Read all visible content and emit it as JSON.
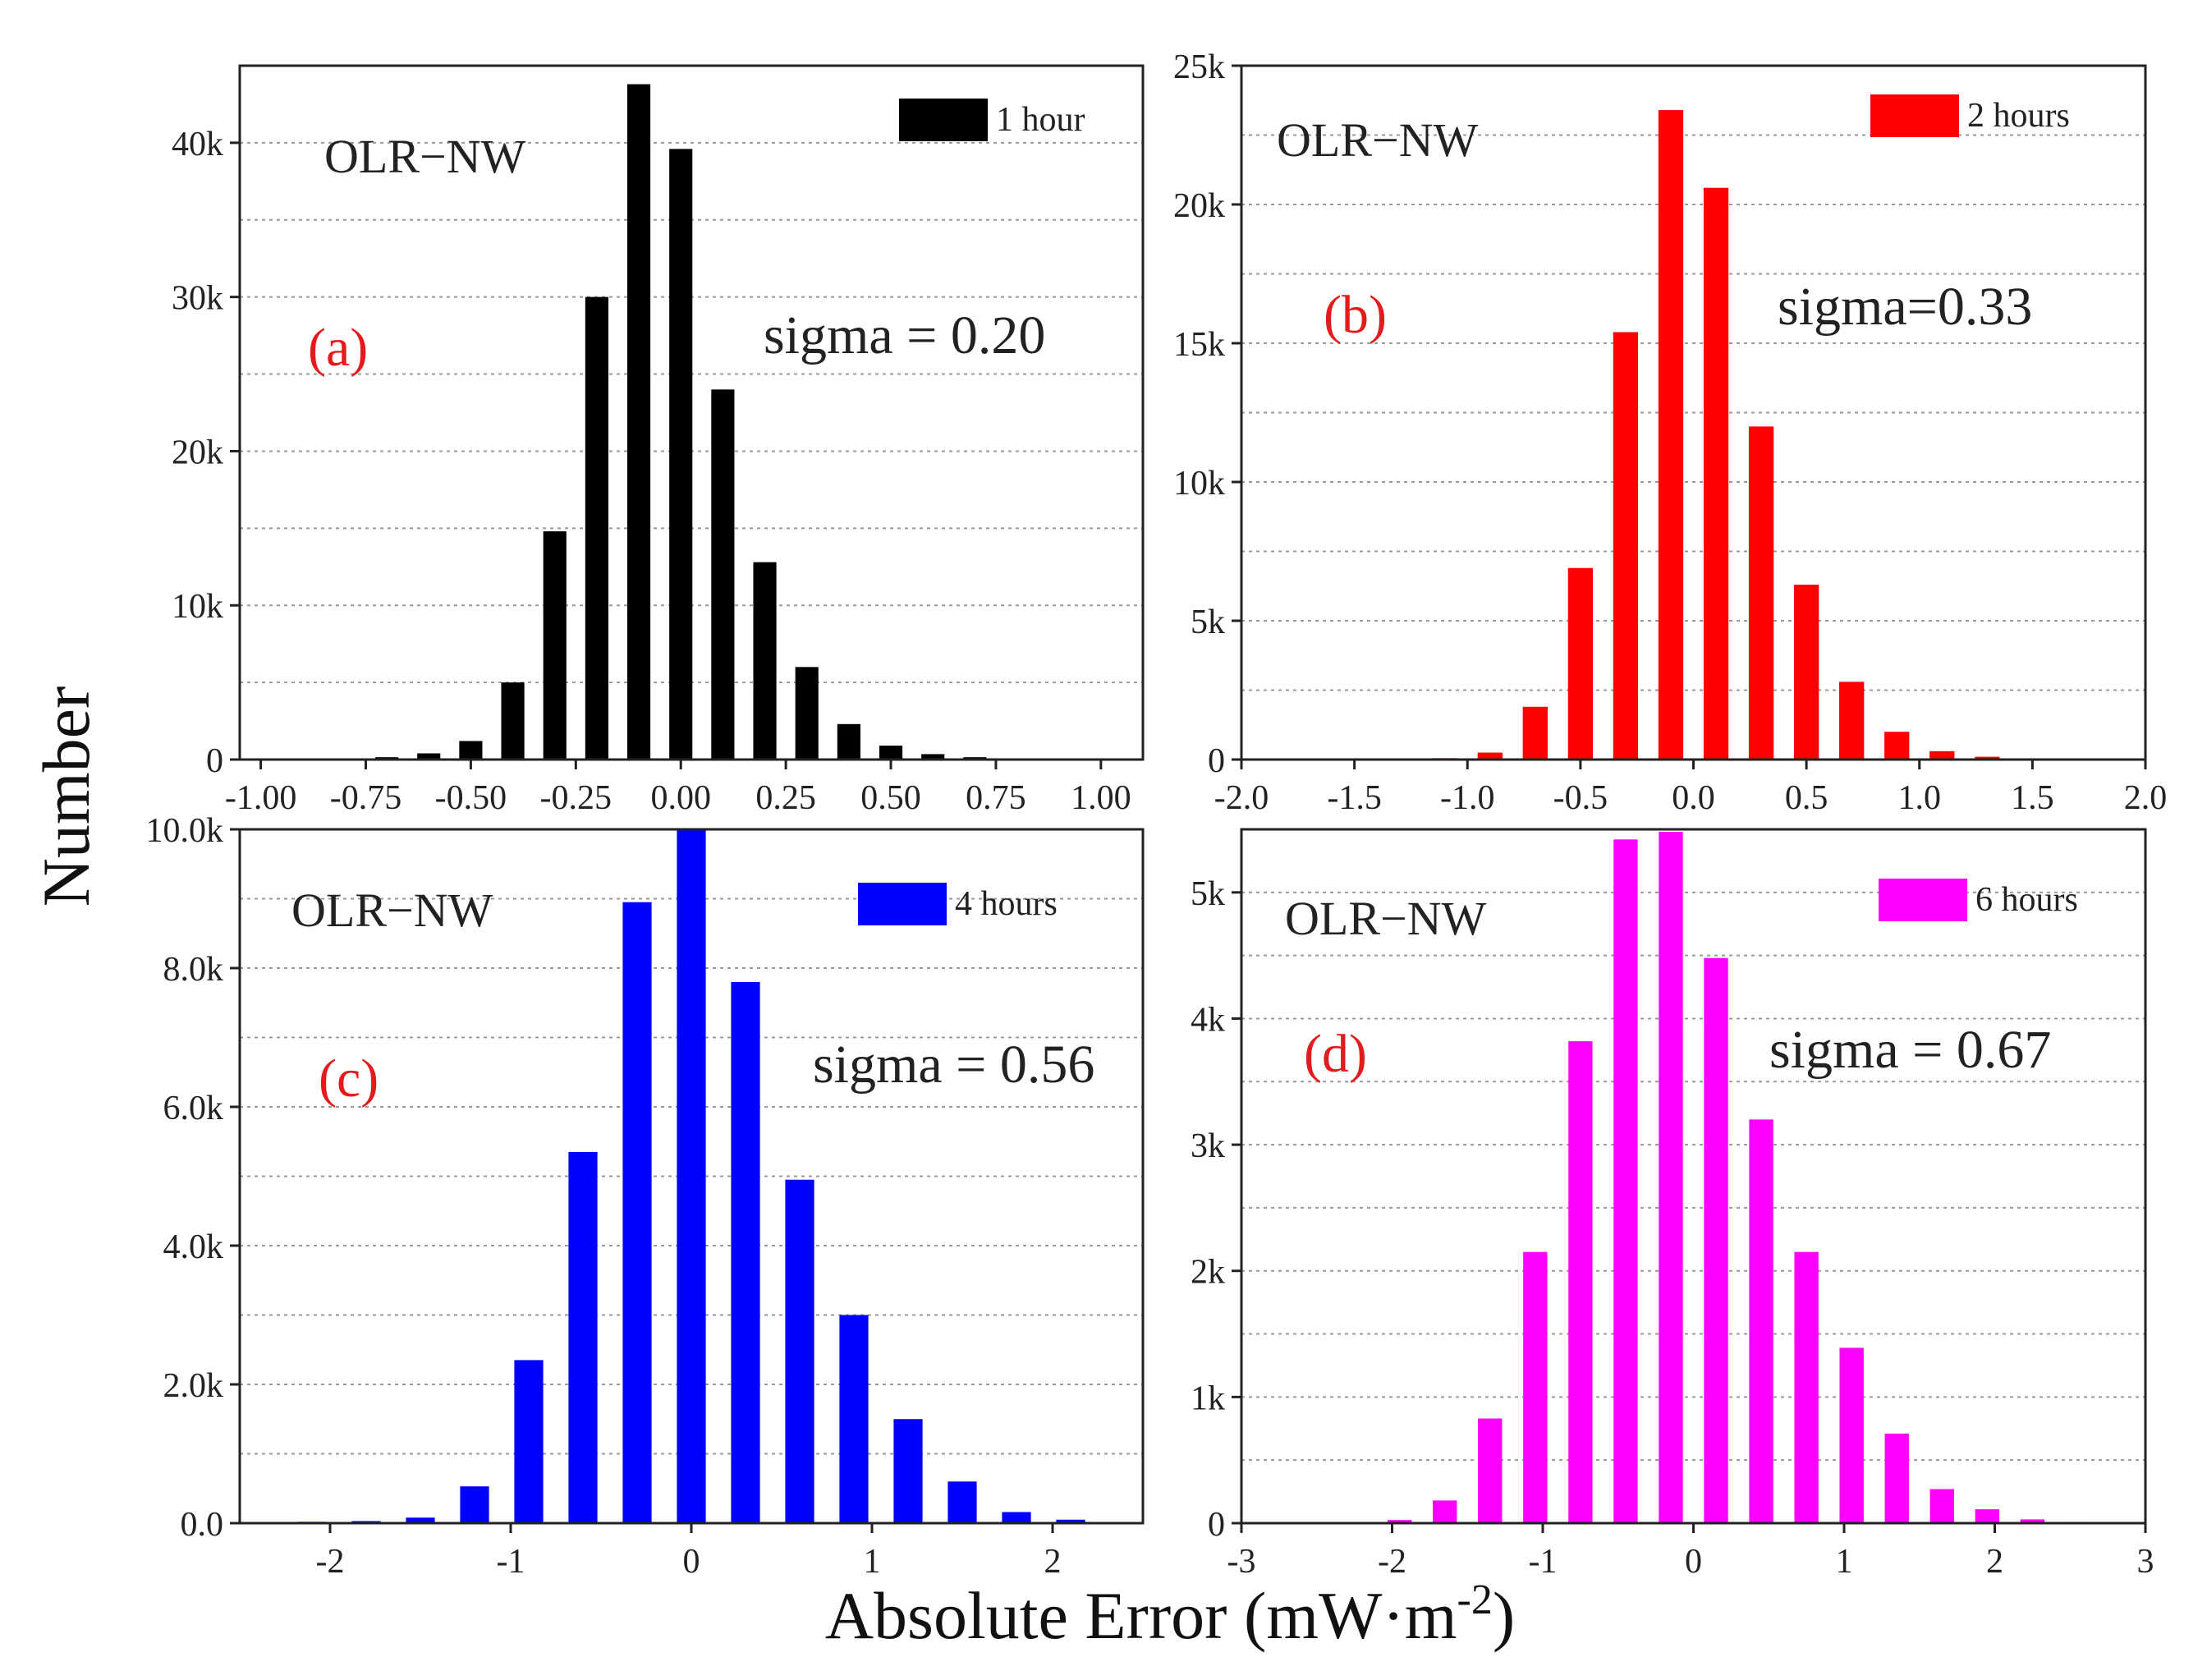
{
  "figure": {
    "ylabel": "Number",
    "xlabel_main": "Absolute Error (mW·m",
    "xlabel_sup": "-2",
    "xlabel_end": ")"
  },
  "chart_data": [
    {
      "type": "bar",
      "panel": "(a)",
      "site": "OLR−NW",
      "sigma_text": "sigma = 0.20",
      "legend": "1 hour",
      "color": "#000000",
      "xlim": [
        -1.05,
        1.1
      ],
      "xticks": [
        -1.0,
        -0.75,
        -0.5,
        -0.25,
        0.0,
        0.25,
        0.5,
        0.75,
        1.0
      ],
      "xtick_labels": [
        "-1.00",
        "-0.75",
        "-0.50",
        "-0.25",
        "0.00",
        "0.25",
        "0.50",
        "0.75",
        "1.00"
      ],
      "ylim": [
        0,
        45000
      ],
      "yticks": [
        0,
        10000,
        20000,
        30000,
        40000
      ],
      "ytick_labels": [
        "0",
        "10k",
        "20k",
        "30k",
        "40k"
      ],
      "grid_step": 5000,
      "bar_width": 0.055,
      "x": [
        -0.8,
        -0.7,
        -0.6,
        -0.5,
        -0.4,
        -0.3,
        -0.2,
        -0.1,
        0.0,
        0.1,
        0.2,
        0.3,
        0.4,
        0.5,
        0.6,
        0.7,
        0.8
      ],
      "values": [
        50,
        150,
        400,
        1200,
        5000,
        14800,
        30000,
        43800,
        39600,
        24000,
        12800,
        6000,
        2300,
        900,
        350,
        150,
        50
      ]
    },
    {
      "type": "bar",
      "panel": "(b)",
      "site": "OLR−NW",
      "sigma_text": "sigma=0.33",
      "legend": "2 hours",
      "color": "#ff0000",
      "xlim": [
        -2.0,
        2.0
      ],
      "xticks": [
        -2.0,
        -1.5,
        -1.0,
        -0.5,
        0.0,
        0.5,
        1.0,
        1.5,
        2.0
      ],
      "xtick_labels": [
        "-2.0",
        "-1.5",
        "-1.0",
        "-0.5",
        "0.0",
        "0.5",
        "1.0",
        "1.5",
        "2.0"
      ],
      "ylim": [
        0,
        25000
      ],
      "yticks": [
        0,
        5000,
        10000,
        15000,
        20000,
        25000
      ],
      "ytick_labels": [
        "0",
        "5k",
        "10k",
        "15k",
        "20k",
        "25k"
      ],
      "grid_step": 2500,
      "bar_width": 0.11,
      "x": [
        -1.1,
        -0.9,
        -0.7,
        -0.5,
        -0.3,
        -0.1,
        0.1,
        0.3,
        0.5,
        0.7,
        0.9,
        1.1,
        1.3
      ],
      "values": [
        50,
        250,
        1900,
        6900,
        15400,
        23400,
        20600,
        12000,
        6300,
        2800,
        1000,
        300,
        100
      ]
    },
    {
      "type": "bar",
      "panel": "(c)",
      "site": "OLR−NW",
      "sigma_text": "sigma = 0.56",
      "legend": "4 hours",
      "color": "#0000ff",
      "xlim": [
        -2.5,
        2.5
      ],
      "xticks": [
        -2,
        -1,
        0,
        1,
        2
      ],
      "xtick_labels": [
        "-2",
        "-1",
        "0",
        "1",
        "2"
      ],
      "ylim": [
        0,
        10000
      ],
      "yticks": [
        0,
        2000,
        4000,
        6000,
        8000,
        10000
      ],
      "ytick_labels": [
        "0.0",
        "2.0k",
        "4.0k",
        "6.0k",
        "8.0k",
        "10.0k"
      ],
      "grid_step": 1000,
      "bar_width": 0.16,
      "x": [
        -2.1,
        -1.8,
        -1.5,
        -1.2,
        -0.9,
        -0.6,
        -0.3,
        0.0,
        0.3,
        0.6,
        0.9,
        1.2,
        1.5,
        1.8,
        2.1
      ],
      "values": [
        20,
        30,
        80,
        530,
        2350,
        5350,
        8950,
        10000,
        7800,
        4950,
        3000,
        1500,
        600,
        160,
        50
      ]
    },
    {
      "type": "bar",
      "panel": "(d)",
      "site": "OLR−NW",
      "sigma_text": "sigma = 0.67",
      "legend": "6 hours",
      "color": "#ff00ff",
      "xlim": [
        -3,
        3
      ],
      "xticks": [
        -3,
        -2,
        -1,
        0,
        1,
        2,
        3
      ],
      "xtick_labels": [
        "-3",
        "-2",
        "-1",
        "0",
        "1",
        "2",
        "3"
      ],
      "ylim": [
        0,
        5500
      ],
      "yticks": [
        0,
        1000,
        2000,
        3000,
        4000,
        5000
      ],
      "ytick_labels": [
        "0",
        "1k",
        "2k",
        "3k",
        "4k",
        "5k"
      ],
      "grid_step": 500,
      "bar_width": 0.16,
      "x": [
        -1.95,
        -1.65,
        -1.35,
        -1.05,
        -0.75,
        -0.45,
        -0.15,
        0.15,
        0.45,
        0.75,
        1.05,
        1.35,
        1.65,
        1.95,
        2.25,
        2.55
      ],
      "values": [
        25,
        180,
        830,
        2150,
        3820,
        5420,
        5480,
        4480,
        3200,
        2150,
        1390,
        710,
        270,
        110,
        30,
        10
      ]
    }
  ]
}
